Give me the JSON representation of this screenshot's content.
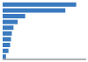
{
  "chart_data": {
    "type": "bar",
    "orientation": "horizontal",
    "categories": [
      null,
      null,
      null,
      null,
      null,
      null,
      null,
      null,
      null,
      null
    ],
    "values": [
      88,
      75,
      27,
      18,
      13,
      11,
      10,
      9,
      7,
      4
    ],
    "color": "#3a7abf",
    "xlim": [
      0,
      100
    ],
    "tick_labels": false
  }
}
